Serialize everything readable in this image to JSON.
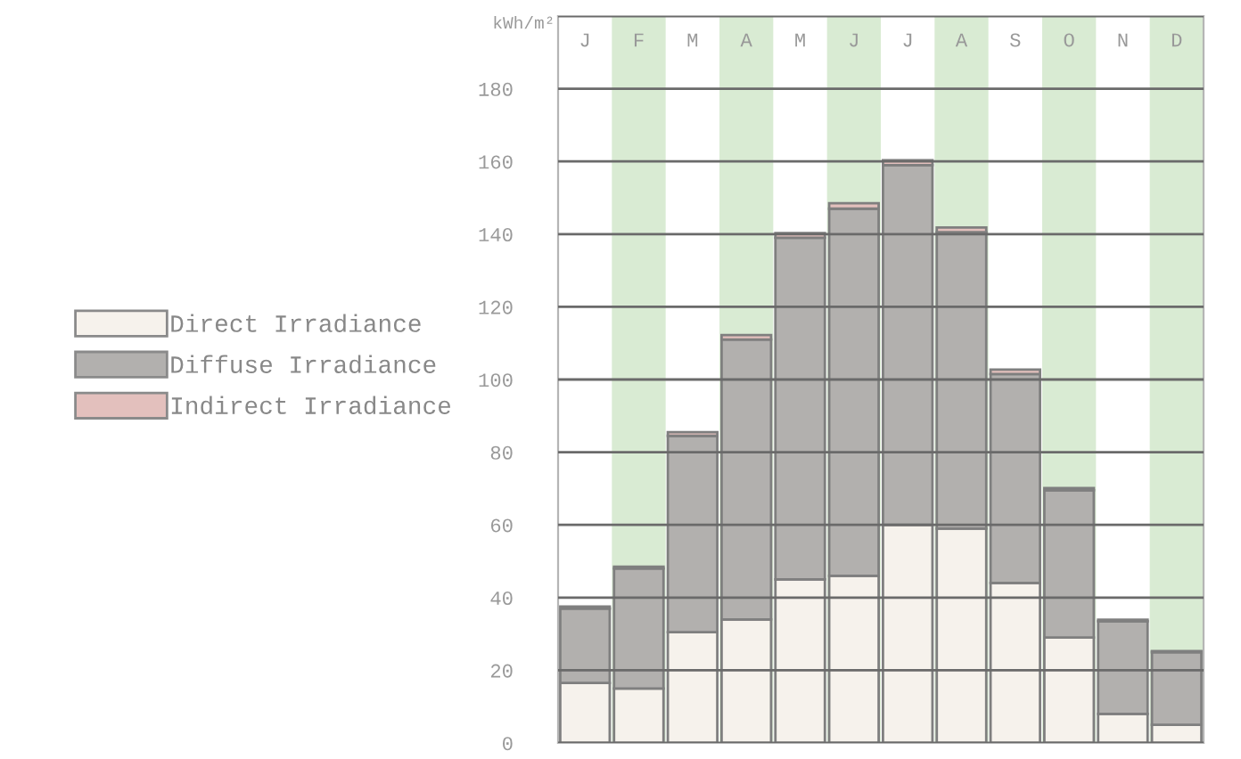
{
  "chart_data": {
    "type": "bar",
    "stacked": true,
    "ylabel": "kWh/m²",
    "categories": [
      "J",
      "F",
      "M",
      "A",
      "M",
      "J",
      "J",
      "A",
      "S",
      "O",
      "N",
      "D"
    ],
    "series": [
      {
        "name": "Direct Irradiance",
        "color": "#f6f2ec",
        "values": [
          16.5,
          15,
          30.5,
          34,
          45,
          46,
          60,
          59,
          44,
          29,
          8,
          5
        ]
      },
      {
        "name": "Diffuse Irradiance",
        "color": "#b2b0ae",
        "values": [
          20.5,
          33,
          54,
          77,
          94,
          101,
          99,
          81.5,
          57.5,
          40.5,
          25.5,
          20
        ]
      },
      {
        "name": "Indirect Irradiance",
        "color": "#e3c0bd",
        "values": [
          0.5,
          0.5,
          1,
          1.2,
          1.3,
          1.5,
          1.3,
          1.3,
          1.2,
          0.6,
          0.4,
          0.3
        ]
      }
    ],
    "ylim": [
      0,
      200
    ],
    "yticks": [
      0,
      20,
      40,
      60,
      80,
      100,
      120,
      140,
      160,
      180,
      {
        "value": 200,
        "label": null
      }
    ],
    "grid": "y",
    "legend": "left"
  }
}
